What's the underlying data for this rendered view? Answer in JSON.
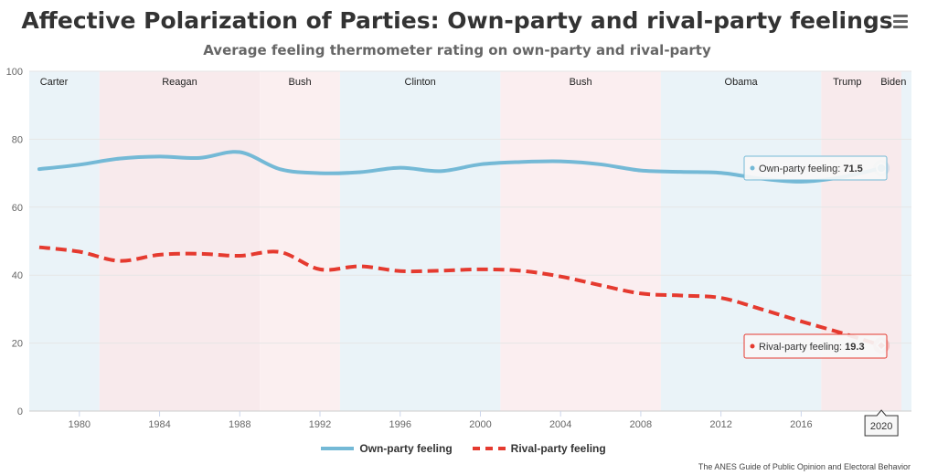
{
  "header": {
    "title": "Affective Polarization of Parties: Own-party and rival-party feelings",
    "subtitle": "Average feeling thermometer rating on own-party and rival-party",
    "menu_icon": "hamburger-menu-icon"
  },
  "credits": "The ANES Guide of Public Opinion and Electoral Behavior",
  "tooltips": {
    "own": {
      "label": "Own-party feeling: ",
      "value": "71.5"
    },
    "rival": {
      "label": "Rival-party feeling: ",
      "value": "19.3"
    },
    "x": "2020"
  },
  "chart_data": {
    "type": "line",
    "title": "Affective Polarization of Parties: Own-party and rival-party feelings",
    "subtitle": "Average feeling thermometer rating on own-party and rival-party",
    "xlim": [
      1977.5,
      2021
    ],
    "ylim": [
      0,
      100
    ],
    "y_ticks": [
      0,
      20,
      40,
      60,
      80,
      100
    ],
    "x_ticks": [
      1980,
      1984,
      1988,
      1992,
      1996,
      2000,
      2004,
      2008,
      2012,
      2016,
      2020
    ],
    "grid": true,
    "legend_position": "bottom-center",
    "series": [
      {
        "name": "Own-party feeling",
        "color": "#74b9d6",
        "style": "solid",
        "x": [
          1978,
          1980,
          1982,
          1984,
          1986,
          1988,
          1990,
          1992,
          1994,
          1996,
          1998,
          2000,
          2002,
          2004,
          2006,
          2008,
          2010,
          2012,
          2014,
          2016,
          2018,
          2020
        ],
        "y": [
          71.2,
          72.5,
          74.3,
          74.9,
          74.5,
          76.2,
          71.2,
          70,
          70.3,
          71.6,
          70.6,
          72.6,
          73.3,
          73.5,
          72.6,
          70.8,
          70.4,
          70.1,
          68.4,
          67.5,
          68.8,
          71.5
        ]
      },
      {
        "name": "Rival-party feeling",
        "color": "#e53a2f",
        "style": "dash",
        "x": [
          1978,
          1980,
          1982,
          1984,
          1986,
          1988,
          1990,
          1992,
          1994,
          1996,
          1998,
          2000,
          2002,
          2004,
          2006,
          2008,
          2010,
          2012,
          2014,
          2016,
          2018,
          2020
        ],
        "y": [
          48.2,
          46.9,
          44.2,
          46,
          46.3,
          45.7,
          46.8,
          41.7,
          42.6,
          41.2,
          41.3,
          41.7,
          41.3,
          39.6,
          37,
          34.6,
          34,
          33.3,
          30,
          26.4,
          23,
          19.3
        ]
      }
    ],
    "bands": [
      {
        "label": "Carter",
        "from": 1977.5,
        "to": 1981,
        "party": "D",
        "color": "#eaf3f8"
      },
      {
        "label": "Reagan",
        "from": 1981,
        "to": 1989,
        "party": "R",
        "color": "#f8eaec"
      },
      {
        "label": "Bush",
        "from": 1989,
        "to": 1993,
        "party": "R",
        "color": "#fbeff0"
      },
      {
        "label": "Clinton",
        "from": 1993,
        "to": 2001,
        "party": "D",
        "color": "#eaf3f8"
      },
      {
        "label": "Bush",
        "from": 2001,
        "to": 2009,
        "party": "R",
        "color": "#fbeef0"
      },
      {
        "label": "Obama",
        "from": 2009,
        "to": 2017,
        "party": "D",
        "color": "#eaf3f8"
      },
      {
        "label": "Trump",
        "from": 2017,
        "to": 2021,
        "party": "R",
        "color": "#f8eaec"
      },
      {
        "label": "Biden",
        "from": 2021,
        "to": 2021.5,
        "party": "D",
        "color": "#eaf3f8"
      }
    ]
  }
}
